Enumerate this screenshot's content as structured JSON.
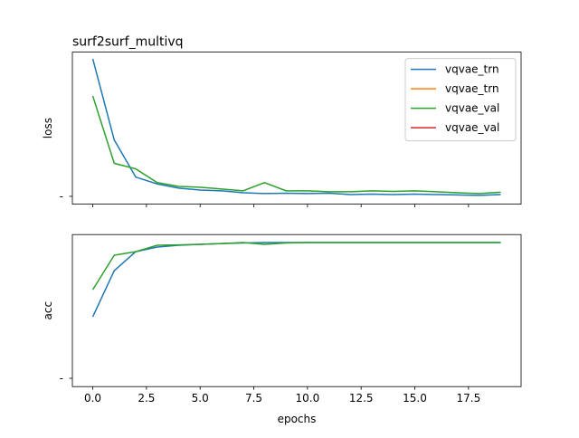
{
  "chart_data": [
    {
      "type": "line",
      "title": "surf2surf_multivq",
      "ylabel": "loss",
      "x": [
        0,
        1,
        2,
        3,
        4,
        5,
        6,
        7,
        8,
        9,
        10,
        11,
        12,
        13,
        14,
        15,
        16,
        17,
        18,
        19
      ],
      "xlim": [
        -0.95,
        19.95
      ],
      "xticks": [
        0,
        2.5,
        5,
        7.5,
        10,
        12.5,
        15,
        17.5
      ],
      "ylim": [
        -0.057,
        1.049
      ],
      "yticks": [
        {
          "value": 0,
          "label": "-"
        }
      ],
      "legend": "upper right",
      "series": [
        {
          "name": "vqvae_trn",
          "color": "#1f77b4",
          "values": [
            1.0,
            0.41,
            0.14,
            0.09,
            0.06,
            0.046,
            0.04,
            0.026,
            0.02,
            0.023,
            0.02,
            0.023,
            0.013,
            0.016,
            0.013,
            0.016,
            0.013,
            0.01,
            0.007,
            0.013
          ]
        },
        {
          "name": "vqvae_trn",
          "color": "#ff7f0e",
          "values": [
            null,
            null,
            null,
            null,
            null,
            null,
            null,
            null,
            null,
            null,
            null,
            null,
            null,
            null,
            null,
            null,
            null,
            null,
            null,
            null
          ]
        },
        {
          "name": "vqvae_val",
          "color": "#2ca02c",
          "values": [
            0.73,
            0.24,
            0.2,
            0.1,
            0.072,
            0.066,
            0.053,
            0.04,
            0.1,
            0.04,
            0.04,
            0.033,
            0.033,
            0.04,
            0.036,
            0.04,
            0.033,
            0.026,
            0.02,
            0.03
          ]
        },
        {
          "name": "vqvae_val",
          "color": "#d62728",
          "values": [
            null,
            null,
            null,
            null,
            null,
            null,
            null,
            null,
            null,
            null,
            null,
            null,
            null,
            null,
            null,
            null,
            null,
            null,
            null,
            null
          ]
        }
      ]
    },
    {
      "type": "line",
      "ylabel": "acc",
      "xlabel": "epochs",
      "x": [
        0,
        1,
        2,
        3,
        4,
        5,
        6,
        7,
        8,
        9,
        10,
        11,
        12,
        13,
        14,
        15,
        16,
        17,
        18,
        19
      ],
      "xlim": [
        -0.95,
        19.95
      ],
      "xticks": [
        {
          "value": 0,
          "label": "0.0"
        },
        2.5,
        {
          "value": 5,
          "label": "5.0"
        },
        7.5,
        {
          "value": 10,
          "label": "10.0"
        },
        12.5,
        {
          "value": 15,
          "label": "15.0"
        },
        17.5
      ],
      "ylim": [
        -0.061,
        1.059
      ],
      "yticks": [
        {
          "value": 0,
          "label": "-"
        }
      ],
      "series": [
        {
          "name": "vqvae_trn",
          "color": "#1f77b4",
          "values": [
            0.453,
            0.793,
            0.933,
            0.967,
            0.98,
            0.987,
            0.993,
            0.997,
            1.0,
            1.0,
            1.0,
            1.0,
            1.0,
            1.0,
            1.0,
            1.0,
            1.0,
            1.0,
            1.0,
            1.0
          ]
        },
        {
          "name": "vqvae_val",
          "color": "#2ca02c",
          "values": [
            0.653,
            0.907,
            0.933,
            0.98,
            0.983,
            0.987,
            0.993,
            1.0,
            0.987,
            0.997,
            1.0,
            1.0,
            1.0,
            1.0,
            1.0,
            1.0,
            1.0,
            1.0,
            1.0,
            1.0
          ]
        }
      ]
    }
  ]
}
